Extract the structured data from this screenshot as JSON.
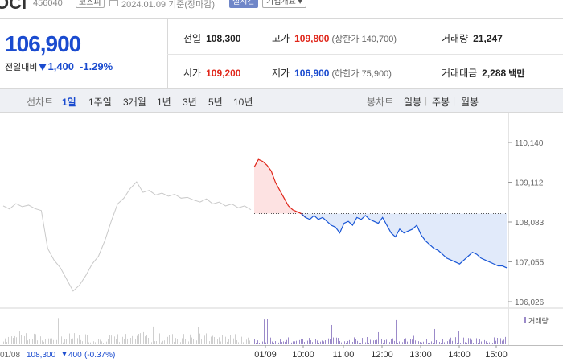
{
  "header": {
    "name": "OCI",
    "code": "456040",
    "market": "코스피",
    "date_basis": "2024.01.09 기준(장마감)",
    "realtime": "실시간",
    "company_info": "기업개요"
  },
  "price": {
    "current": "106,900",
    "change_label": "전일대비",
    "change_amount": "1,400",
    "change_rate": "-1.29%"
  },
  "stats": {
    "prev_close": {
      "label": "전일",
      "value": "108,300"
    },
    "high": {
      "label": "고가",
      "value": "109,800",
      "sub": "(상한가 140,700)"
    },
    "volume": {
      "label": "거래량",
      "value": "21,247"
    },
    "open": {
      "label": "시가",
      "value": "109,200"
    },
    "low": {
      "label": "저가",
      "value": "106,900",
      "sub": "(하한가 75,900)"
    },
    "amount": {
      "label": "거래대금",
      "value": "2,288",
      "unit": "백만"
    }
  },
  "tabs": {
    "line_label": "선차트",
    "periods": [
      "1일",
      "1주일",
      "3개월",
      "1년",
      "3년",
      "5년",
      "10년"
    ],
    "active_period": "1일",
    "candle_label": "봉차트",
    "candles": [
      "일봉",
      "주봉",
      "월봉"
    ]
  },
  "chart_data": {
    "type": "line",
    "y_ticks": [
      "110,140",
      "109,112",
      "108,083",
      "107,055",
      "106,026"
    ],
    "ylim": [
      106026,
      110140
    ],
    "prev_close_line": 108300,
    "x_labels": [
      "01/09",
      "10:00",
      "11:00",
      "12:00",
      "13:00",
      "14:00",
      "15:00"
    ],
    "volume_label": "거래량",
    "prev_day": {
      "label": "01/08",
      "close": "108,300",
      "change": "400",
      "rate": "(-0.37%)",
      "points": [
        108500,
        108420,
        108560,
        108480,
        108520,
        108430,
        108380,
        107400,
        107100,
        106900,
        106600,
        106300,
        106450,
        106700,
        107000,
        107200,
        107600,
        108100,
        108550,
        108700,
        108950,
        109120,
        108850,
        108900,
        108780,
        108830,
        108750,
        108800,
        108700,
        108720,
        108650,
        108600,
        108680,
        108550,
        108600,
        108500,
        108550,
        108450,
        108500,
        108400
      ]
    },
    "today": {
      "points": [
        109500,
        109700,
        109650,
        109550,
        109400,
        109100,
        108900,
        108700,
        108500,
        108400,
        108350,
        108300,
        108200,
        108150,
        108250,
        108150,
        108200,
        108100,
        108000,
        107950,
        107800,
        108050,
        108100,
        108000,
        108200,
        108150,
        108250,
        108150,
        108100,
        108050,
        108200,
        108000,
        107800,
        107700,
        107900,
        107800,
        107850,
        107900,
        108000,
        107750,
        107600,
        107500,
        107400,
        107350,
        107250,
        107150,
        107100,
        107050,
        107000,
        107100,
        107200,
        107300,
        107250,
        107150,
        107100,
        107050,
        107000,
        106950,
        106950,
        106900
      ]
    }
  }
}
